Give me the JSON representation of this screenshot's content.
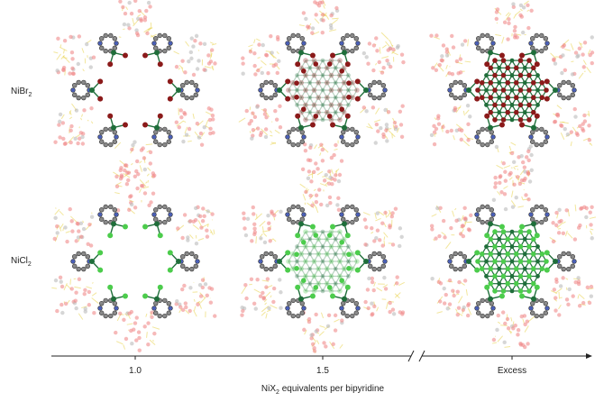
{
  "row_labels": [
    {
      "text": "NiBr",
      "sub": "2"
    },
    {
      "text": "NiCl",
      "sub": "2"
    }
  ],
  "axis": {
    "ticks": [
      "1.0",
      "1.5",
      "Excess"
    ],
    "label": {
      "text": "NiX",
      "sub": "2",
      "rest": " equivalents per bipyridine"
    }
  }
}
